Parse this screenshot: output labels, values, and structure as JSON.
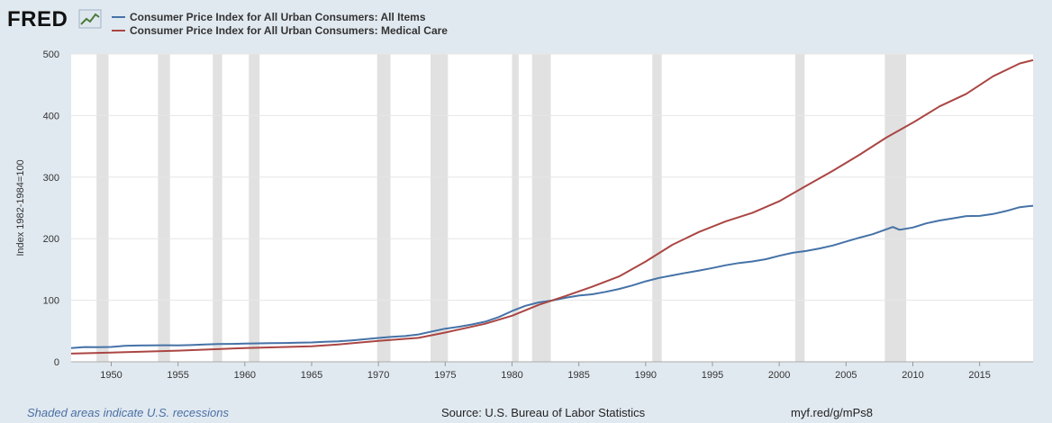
{
  "header": {
    "logo_text": "FRED",
    "logo_icon": "line-graph-icon"
  },
  "footer": {
    "note": "Shaded areas indicate U.S. recessions",
    "source": "Source: U.S. Bureau of Labor Statistics",
    "link": "myf.red/g/mPs8"
  },
  "colors": {
    "all_items": "#4572a7",
    "medical_care": "#aa4643",
    "recession": "#e1e1e1",
    "plot_bg": "#ffffff",
    "page_bg": "#e1e9f0"
  },
  "chart_data": {
    "type": "line",
    "title": "",
    "xlabel": "",
    "ylabel": "Index 1982-1984=100",
    "xlim": [
      1947.0,
      2019.0
    ],
    "ylim": [
      0,
      500
    ],
    "yticks": [
      0,
      100,
      200,
      300,
      400,
      500
    ],
    "xticks": [
      1950,
      1955,
      1960,
      1965,
      1970,
      1975,
      1980,
      1985,
      1990,
      1995,
      2000,
      2005,
      2010,
      2015
    ],
    "grid": true,
    "legend_position": "top-left",
    "recessions": [
      [
        1948.9,
        1949.8
      ],
      [
        1953.5,
        1954.4
      ],
      [
        1957.6,
        1958.3
      ],
      [
        1960.3,
        1961.1
      ],
      [
        1969.9,
        1970.9
      ],
      [
        1973.9,
        1975.2
      ],
      [
        1980.0,
        1980.5
      ],
      [
        1981.5,
        1982.9
      ],
      [
        1990.5,
        1991.2
      ],
      [
        2001.2,
        2001.9
      ],
      [
        2007.9,
        2009.5
      ]
    ],
    "series": [
      {
        "name": "Consumer Price Index for All Urban Consumers: All Items",
        "color": "#4572a7",
        "x": [
          1947,
          1948,
          1949,
          1950,
          1951,
          1952,
          1953,
          1954,
          1955,
          1956,
          1957,
          1958,
          1959,
          1960,
          1961,
          1962,
          1963,
          1964,
          1965,
          1966,
          1967,
          1968,
          1969,
          1970,
          1971,
          1972,
          1973,
          1974,
          1975,
          1976,
          1977,
          1978,
          1979,
          1980,
          1981,
          1982,
          1983,
          1984,
          1985,
          1986,
          1987,
          1988,
          1989,
          1990,
          1991,
          1992,
          1993,
          1994,
          1995,
          1996,
          1997,
          1998,
          1999,
          2000,
          2001,
          2002,
          2003,
          2004,
          2005,
          2006,
          2007,
          2008.5,
          2009,
          2010,
          2011,
          2012,
          2013,
          2014,
          2015,
          2016,
          2017,
          2018,
          2019
        ],
        "values": [
          22.3,
          24.0,
          23.8,
          24.1,
          26.0,
          26.5,
          26.7,
          26.9,
          26.8,
          27.2,
          28.1,
          28.9,
          29.1,
          29.6,
          29.9,
          30.2,
          30.6,
          31.0,
          31.5,
          32.5,
          33.4,
          34.8,
          36.7,
          38.8,
          40.5,
          41.8,
          44.4,
          49.3,
          53.8,
          56.9,
          60.6,
          65.2,
          72.6,
          82.4,
          90.9,
          96.5,
          99.6,
          103.9,
          107.6,
          109.6,
          113.6,
          118.3,
          124.0,
          130.7,
          136.2,
          140.3,
          144.5,
          148.2,
          152.4,
          156.9,
          160.5,
          163.0,
          166.6,
          172.2,
          177.1,
          179.9,
          184.0,
          188.9,
          195.3,
          201.6,
          207.3,
          219.0,
          214.5,
          218.1,
          224.9,
          229.6,
          233.0,
          236.7,
          237.0,
          240.0,
          245.1,
          251.1,
          253.5
        ]
      },
      {
        "name": "Consumer Price Index for All Urban Consumers: Medical Care",
        "color": "#aa4643",
        "x": [
          1947,
          1950,
          1955,
          1960,
          1965,
          1967,
          1970,
          1973,
          1975,
          1978,
          1980,
          1982,
          1984,
          1986,
          1988,
          1990,
          1992,
          1994,
          1996,
          1998,
          2000,
          2002,
          2004,
          2006,
          2008,
          2010,
          2012,
          2014,
          2016,
          2018,
          2019
        ],
        "values": [
          13.3,
          15.1,
          18.2,
          22.3,
          25.2,
          28.2,
          34.0,
          38.9,
          47.5,
          61.8,
          74.9,
          92.5,
          106.8,
          122.0,
          138.6,
          162.8,
          190.1,
          211.0,
          228.2,
          242.1,
          260.8,
          285.6,
          310.1,
          336.2,
          364.1,
          388.4,
          414.9,
          435.3,
          463.7,
          484.7,
          490.0
        ]
      }
    ]
  }
}
